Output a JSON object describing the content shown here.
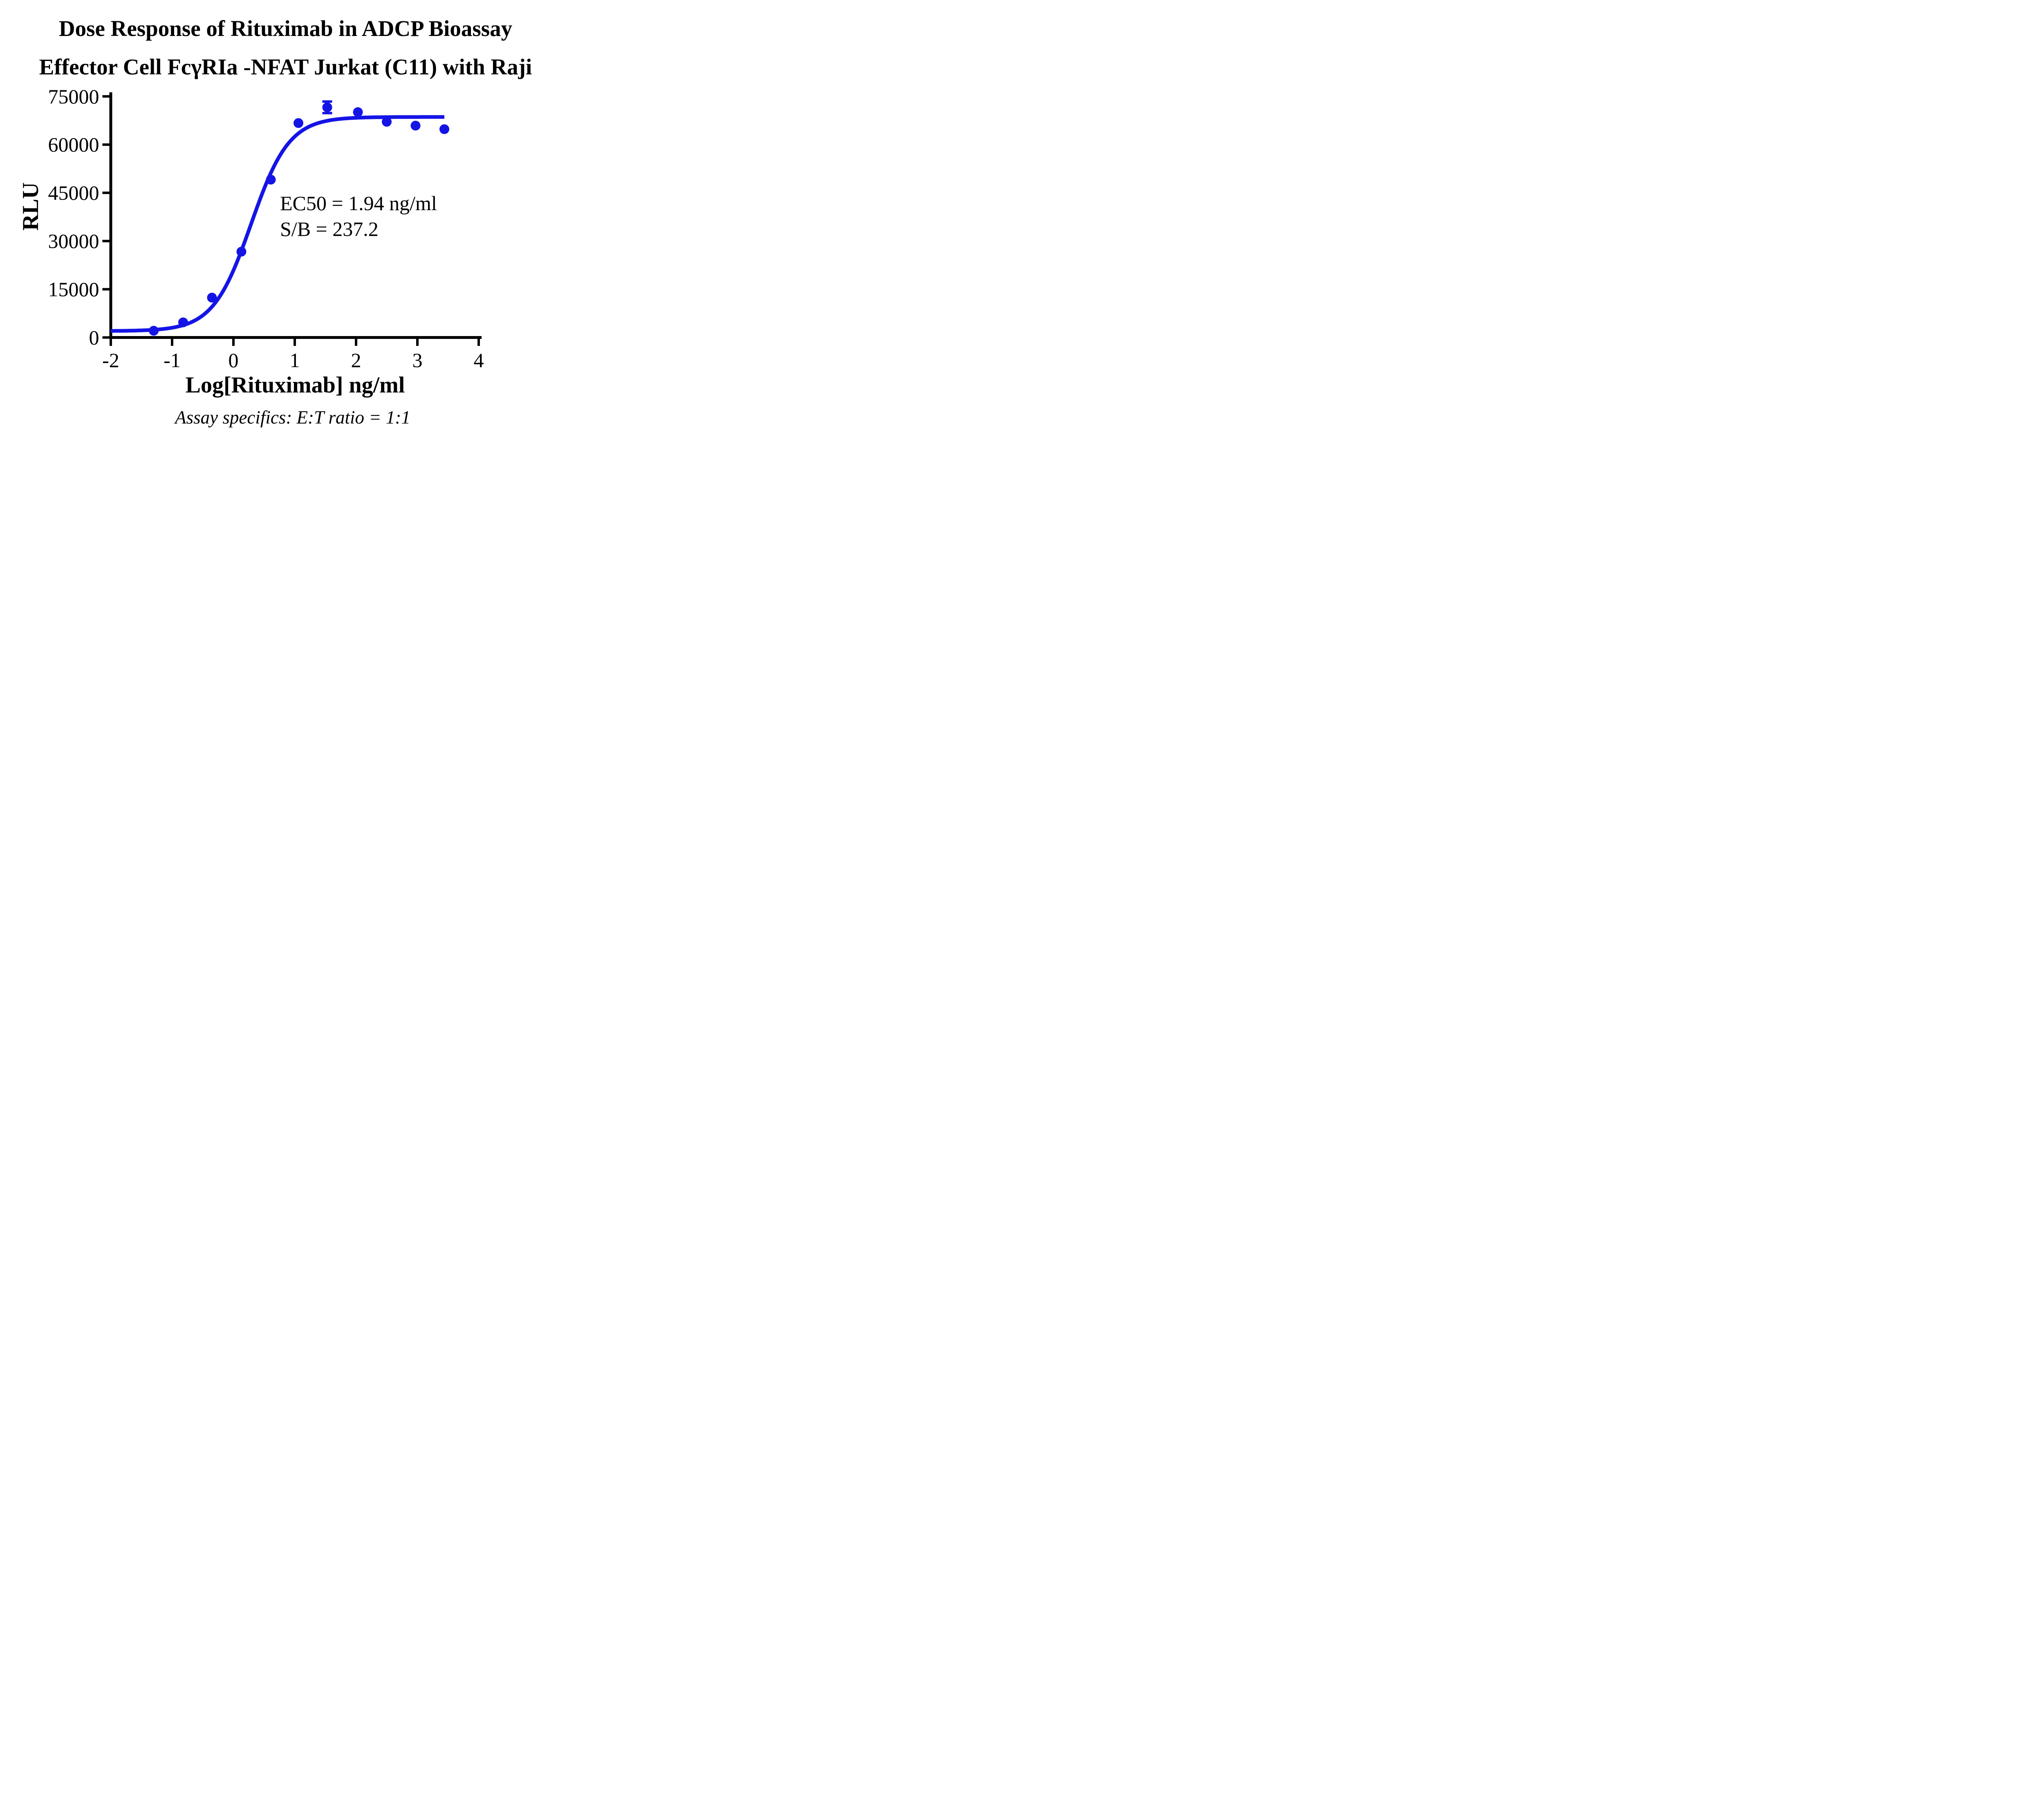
{
  "title": {
    "line1": "Dose Response of Rituximab in ADCP Bioassay",
    "line2": "Effector Cell FcγRIa -NFAT Jurkat (C11) with Raji"
  },
  "caption": "Assay specifics: E:T ratio = 1:1",
  "colors": {
    "curve": "#1414e6",
    "axis": "#000000",
    "text": "#000000",
    "background": "#ffffff"
  },
  "chart_data": {
    "type": "scatter",
    "title": "Dose Response of Rituximab in ADCP Bioassay Effector Cell FcγRIa -NFAT Jurkat (C11) with Raji",
    "xlabel": "Log[Rituximab] ng/ml",
    "ylabel": "RLU",
    "xlim": [
      -2,
      4
    ],
    "ylim": [
      0,
      75000
    ],
    "x_ticks": [
      -2,
      -1,
      0,
      1,
      2,
      3,
      4
    ],
    "x_tick_labels": [
      "-2",
      "-1",
      "0",
      "1",
      "2",
      "3",
      "4"
    ],
    "y_ticks": [
      0,
      15000,
      30000,
      45000,
      60000,
      75000
    ],
    "y_tick_labels": [
      "0",
      "15000",
      "30000",
      "45000",
      "60000",
      "75000"
    ],
    "grid": false,
    "legend": "none",
    "points": [
      {
        "x": -1.3,
        "y": 2100
      },
      {
        "x": -0.82,
        "y": 4700
      },
      {
        "x": -0.35,
        "y": 12400
      },
      {
        "x": 0.13,
        "y": 26700
      },
      {
        "x": 0.61,
        "y": 49100
      },
      {
        "x": 1.06,
        "y": 66700
      },
      {
        "x": 1.53,
        "y": 71600,
        "error": 1800
      },
      {
        "x": 2.03,
        "y": 70100
      },
      {
        "x": 2.5,
        "y": 67100
      },
      {
        "x": 2.97,
        "y": 65900
      },
      {
        "x": 3.44,
        "y": 64800
      }
    ],
    "fit_curve": {
      "model": "4PL",
      "bottom": 2000,
      "top": 68600,
      "log_ec50": 0.288,
      "hill_slope": 1.4,
      "x_start": -2.0,
      "x_end": 3.44
    },
    "annotations": {
      "ec50_label": "EC50 = 1.94 ng/ml",
      "sb_label": "S/B = 237.2"
    }
  }
}
